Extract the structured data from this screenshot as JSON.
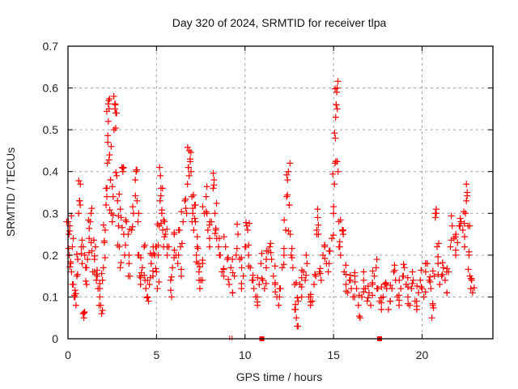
{
  "chart_data": {
    "type": "scatter",
    "title": "Day 320 of 2024, SRMTID for receiver tlpa",
    "xlabel": "GPS time / hours",
    "ylabel": "SRMTID / TECUs",
    "xlim": [
      0,
      24
    ],
    "ylim": [
      0,
      0.7
    ],
    "xticks": [
      0,
      5,
      10,
      15,
      20
    ],
    "xtick_labels": [
      "0",
      "5",
      "10",
      "15",
      "20"
    ],
    "yticks": [
      0,
      0.1,
      0.2,
      0.3,
      0.4,
      0.5,
      0.6,
      0.7
    ],
    "ytick_labels": [
      "0",
      "0.1",
      "0.2",
      "0.3",
      "0.4",
      "0.5",
      "0.6",
      "0.7"
    ],
    "grid": true,
    "marker": "plus",
    "series_color": "#ff0000",
    "series": [
      {
        "name": "SRMTID",
        "points": [
          [
            0.02,
            0.28
          ],
          [
            0.05,
            0.25
          ],
          [
            0.08,
            0.2
          ],
          [
            0.1,
            0.27
          ],
          [
            0.15,
            0.18
          ],
          [
            0.2,
            0.16
          ],
          [
            0.25,
            0.22
          ],
          [
            0.3,
            0.13
          ],
          [
            0.35,
            0.1
          ],
          [
            0.4,
            0.1
          ],
          [
            0.45,
            0.08
          ],
          [
            0.5,
            0.15
          ],
          [
            0.55,
            0.19
          ],
          [
            0.6,
            0.3
          ],
          [
            0.65,
            0.33
          ],
          [
            0.7,
            0.37
          ],
          [
            0.75,
            0.22
          ],
          [
            0.8,
            0.18
          ],
          [
            0.85,
            0.06
          ],
          [
            0.9,
            0.05
          ],
          [
            0.95,
            0.2
          ],
          [
            1.0,
            0.17
          ],
          [
            1.05,
            0.13
          ],
          [
            1.1,
            0.19
          ],
          [
            1.2,
            0.24
          ],
          [
            1.25,
            0.28
          ],
          [
            1.3,
            0.3
          ],
          [
            1.35,
            0.21
          ],
          [
            1.4,
            0.16
          ],
          [
            1.5,
            0.19
          ],
          [
            1.55,
            0.22
          ],
          [
            1.6,
            0.14
          ],
          [
            1.65,
            0.15
          ],
          [
            1.7,
            0.12
          ],
          [
            1.8,
            0.1
          ],
          [
            1.85,
            0.08
          ],
          [
            1.9,
            0.06
          ],
          [
            1.95,
            0.14
          ],
          [
            2.0,
            0.17
          ],
          [
            2.05,
            0.23
          ],
          [
            2.1,
            0.26
          ],
          [
            2.15,
            0.32
          ],
          [
            2.2,
            0.36
          ],
          [
            2.22,
            0.42
          ],
          [
            2.25,
            0.47
          ],
          [
            2.28,
            0.52
          ],
          [
            2.3,
            0.57
          ],
          [
            2.32,
            0.55
          ],
          [
            2.35,
            0.44
          ],
          [
            2.4,
            0.38
          ],
          [
            2.45,
            0.3
          ],
          [
            2.5,
            0.28
          ],
          [
            2.55,
            0.34
          ],
          [
            2.6,
            0.5
          ],
          [
            2.65,
            0.55
          ],
          [
            2.68,
            0.56
          ],
          [
            2.7,
            0.54
          ],
          [
            2.75,
            0.39
          ],
          [
            2.8,
            0.33
          ],
          [
            2.85,
            0.27
          ],
          [
            2.9,
            0.22
          ],
          [
            2.95,
            0.17
          ],
          [
            3.0,
            0.29
          ],
          [
            3.05,
            0.41
          ],
          [
            3.1,
            0.4
          ],
          [
            3.15,
            0.25
          ],
          [
            3.2,
            0.2
          ],
          [
            3.3,
            0.28
          ],
          [
            3.4,
            0.25
          ],
          [
            3.45,
            0.18
          ],
          [
            3.5,
            0.15
          ],
          [
            3.6,
            0.26
          ],
          [
            3.7,
            0.3
          ],
          [
            3.8,
            0.38
          ],
          [
            3.85,
            0.4
          ],
          [
            3.9,
            0.33
          ],
          [
            3.95,
            0.28
          ],
          [
            4.0,
            0.2
          ],
          [
            4.05,
            0.15
          ],
          [
            4.1,
            0.13
          ],
          [
            4.2,
            0.17
          ],
          [
            4.3,
            0.22
          ],
          [
            4.35,
            0.14
          ],
          [
            4.4,
            0.12
          ],
          [
            4.5,
            0.1
          ],
          [
            4.55,
            0.09
          ],
          [
            4.6,
            0.13
          ],
          [
            4.7,
            0.18
          ],
          [
            4.75,
            0.2
          ],
          [
            4.8,
            0.15
          ],
          [
            4.9,
            0.2
          ],
          [
            4.95,
            0.22
          ],
          [
            5.0,
            0.16
          ],
          [
            5.05,
            0.12
          ],
          [
            5.1,
            0.2
          ],
          [
            5.15,
            0.27
          ],
          [
            5.2,
            0.33
          ],
          [
            5.22,
            0.39
          ],
          [
            5.25,
            0.36
          ],
          [
            5.3,
            0.3
          ],
          [
            5.35,
            0.26
          ],
          [
            5.4,
            0.22
          ],
          [
            5.45,
            0.28
          ],
          [
            5.5,
            0.25
          ],
          [
            5.6,
            0.2
          ],
          [
            5.7,
            0.22
          ],
          [
            5.8,
            0.14
          ],
          [
            5.85,
            0.1
          ],
          [
            5.9,
            0.17
          ],
          [
            6.0,
            0.25
          ],
          [
            6.1,
            0.2
          ],
          [
            6.2,
            0.18
          ],
          [
            6.3,
            0.26
          ],
          [
            6.35,
            0.22
          ],
          [
            6.4,
            0.15
          ],
          [
            6.5,
            0.28
          ],
          [
            6.6,
            0.33
          ],
          [
            6.7,
            0.3
          ],
          [
            6.75,
            0.37
          ],
          [
            6.8,
            0.41
          ],
          [
            6.85,
            0.45
          ],
          [
            6.9,
            0.43
          ],
          [
            6.95,
            0.4
          ],
          [
            7.0,
            0.34
          ],
          [
            7.05,
            0.3
          ],
          [
            7.1,
            0.26
          ],
          [
            7.15,
            0.32
          ],
          [
            7.2,
            0.28
          ],
          [
            7.25,
            0.2
          ],
          [
            7.3,
            0.22
          ],
          [
            7.35,
            0.18
          ],
          [
            7.4,
            0.16
          ],
          [
            7.45,
            0.12
          ],
          [
            7.5,
            0.14
          ],
          [
            7.6,
            0.18
          ],
          [
            7.7,
            0.3
          ],
          [
            7.8,
            0.34
          ],
          [
            7.85,
            0.3
          ],
          [
            7.9,
            0.26
          ],
          [
            8.0,
            0.22
          ],
          [
            8.1,
            0.28
          ],
          [
            8.2,
            0.36
          ],
          [
            8.25,
            0.38
          ],
          [
            8.3,
            0.3
          ],
          [
            8.35,
            0.26
          ],
          [
            8.4,
            0.24
          ],
          [
            8.5,
            0.22
          ],
          [
            8.6,
            0.2
          ],
          [
            8.7,
            0.16
          ],
          [
            8.8,
            0.15
          ],
          [
            8.9,
            0.22
          ],
          [
            9.0,
            0.19
          ],
          [
            9.1,
            0.13
          ],
          [
            9.2,
            0.17
          ],
          [
            9.3,
            0.11
          ],
          [
            9.4,
            0.15
          ],
          [
            9.5,
            0.2
          ],
          [
            9.6,
            0.25
          ],
          [
            9.7,
            0.19
          ],
          [
            9.8,
            0.12
          ],
          [
            9.9,
            0.15
          ],
          [
            10.0,
            0.22
          ],
          [
            10.1,
            0.27
          ],
          [
            10.15,
            0.26
          ],
          [
            10.2,
            0.2
          ],
          [
            10.3,
            0.17
          ],
          [
            10.4,
            0.14
          ],
          [
            10.5,
            0.12
          ],
          [
            10.6,
            0.1
          ],
          [
            10.7,
            0.08
          ],
          [
            10.8,
            0.13
          ],
          [
            10.9,
            0.18
          ],
          [
            11.0,
            0.14
          ],
          [
            11.1,
            0.12
          ],
          [
            11.2,
            0.17
          ],
          [
            11.3,
            0.21
          ],
          [
            11.4,
            0.22
          ],
          [
            11.5,
            0.19
          ],
          [
            11.6,
            0.15
          ],
          [
            11.7,
            0.13
          ],
          [
            11.8,
            0.1
          ],
          [
            11.9,
            0.08
          ],
          [
            12.0,
            0.12
          ],
          [
            12.1,
            0.17
          ],
          [
            12.2,
            0.2
          ],
          [
            12.3,
            0.26
          ],
          [
            12.35,
            0.34
          ],
          [
            12.4,
            0.38
          ],
          [
            12.45,
            0.4
          ],
          [
            12.5,
            0.32
          ],
          [
            12.55,
            0.25
          ],
          [
            12.6,
            0.2
          ],
          [
            12.7,
            0.17
          ],
          [
            12.8,
            0.13
          ],
          [
            12.85,
            0.07
          ],
          [
            12.9,
            0.05
          ],
          [
            12.95,
            0.03
          ],
          [
            13.0,
            0.09
          ],
          [
            13.1,
            0.13
          ],
          [
            13.2,
            0.1
          ],
          [
            13.3,
            0.16
          ],
          [
            13.4,
            0.14
          ],
          [
            13.5,
            0.18
          ],
          [
            13.6,
            0.1
          ],
          [
            13.7,
            0.08
          ],
          [
            13.8,
            0.09
          ],
          [
            13.9,
            0.13
          ],
          [
            14.0,
            0.15
          ],
          [
            14.05,
            0.26
          ],
          [
            14.1,
            0.29
          ],
          [
            14.15,
            0.25
          ],
          [
            14.2,
            0.16
          ],
          [
            14.3,
            0.14
          ],
          [
            14.4,
            0.2
          ],
          [
            14.5,
            0.22
          ],
          [
            14.6,
            0.18
          ],
          [
            14.7,
            0.16
          ],
          [
            14.8,
            0.21
          ],
          [
            14.9,
            0.24
          ],
          [
            15.0,
            0.3
          ],
          [
            15.05,
            0.37
          ],
          [
            15.08,
            0.42
          ],
          [
            15.1,
            0.48
          ],
          [
            15.12,
            0.53
          ],
          [
            15.15,
            0.56
          ],
          [
            15.18,
            0.59
          ],
          [
            15.2,
            0.6
          ],
          [
            15.25,
            0.4
          ],
          [
            15.3,
            0.28
          ],
          [
            15.35,
            0.22
          ],
          [
            15.4,
            0.2
          ],
          [
            15.5,
            0.26
          ],
          [
            15.55,
            0.25
          ],
          [
            15.6,
            0.16
          ],
          [
            15.7,
            0.13
          ],
          [
            15.8,
            0.11
          ],
          [
            15.9,
            0.14
          ],
          [
            16.0,
            0.12
          ],
          [
            16.1,
            0.1
          ],
          [
            16.2,
            0.15
          ],
          [
            16.3,
            0.12
          ],
          [
            16.4,
            0.08
          ],
          [
            16.5,
            0.05
          ],
          [
            16.6,
            0.1
          ],
          [
            16.7,
            0.14
          ],
          [
            16.8,
            0.12
          ],
          [
            16.9,
            0.09
          ],
          [
            17.0,
            0.11
          ],
          [
            17.1,
            0.08
          ],
          [
            17.2,
            0.13
          ],
          [
            17.3,
            0.15
          ],
          [
            17.4,
            0.17
          ],
          [
            17.5,
            0.12
          ],
          [
            17.6,
            0.09
          ],
          [
            17.7,
            0.07
          ],
          [
            17.8,
            0.1
          ],
          [
            17.9,
            0.13
          ],
          [
            18.0,
            0.12
          ],
          [
            18.1,
            0.07
          ],
          [
            18.2,
            0.09
          ],
          [
            18.3,
            0.12
          ],
          [
            18.4,
            0.16
          ],
          [
            18.5,
            0.14
          ],
          [
            18.6,
            0.1
          ],
          [
            18.7,
            0.08
          ],
          [
            18.8,
            0.12
          ],
          [
            18.9,
            0.15
          ],
          [
            19.0,
            0.17
          ],
          [
            19.1,
            0.13
          ],
          [
            19.2,
            0.1
          ],
          [
            19.3,
            0.08
          ],
          [
            19.4,
            0.12
          ],
          [
            19.5,
            0.14
          ],
          [
            19.6,
            0.09
          ],
          [
            19.7,
            0.07
          ],
          [
            19.8,
            0.11
          ],
          [
            19.9,
            0.14
          ],
          [
            20.0,
            0.12
          ],
          [
            20.1,
            0.1
          ],
          [
            20.2,
            0.16
          ],
          [
            20.3,
            0.18
          ],
          [
            20.4,
            0.14
          ],
          [
            20.5,
            0.12
          ],
          [
            20.55,
            0.05
          ],
          [
            20.6,
            0.08
          ],
          [
            20.7,
            0.15
          ],
          [
            20.75,
            0.29
          ],
          [
            20.8,
            0.3
          ],
          [
            20.85,
            0.22
          ],
          [
            20.9,
            0.18
          ],
          [
            21.0,
            0.13
          ],
          [
            21.1,
            0.15
          ],
          [
            21.2,
            0.17
          ],
          [
            21.3,
            0.14
          ],
          [
            21.4,
            0.11
          ],
          [
            21.5,
            0.16
          ],
          [
            21.6,
            0.22
          ],
          [
            21.7,
            0.27
          ],
          [
            21.8,
            0.24
          ],
          [
            21.9,
            0.2
          ],
          [
            22.0,
            0.23
          ],
          [
            22.1,
            0.27
          ],
          [
            22.2,
            0.28
          ],
          [
            22.3,
            0.26
          ],
          [
            22.4,
            0.22
          ],
          [
            22.45,
            0.3
          ],
          [
            22.5,
            0.33
          ],
          [
            22.55,
            0.35
          ],
          [
            22.6,
            0.27
          ],
          [
            22.65,
            0.2
          ],
          [
            22.7,
            0.15
          ],
          [
            22.75,
            0.12
          ],
          [
            22.8,
            0.14
          ],
          [
            22.85,
            0.11
          ]
        ]
      }
    ],
    "bottom_markers": [
      {
        "x": 9.2,
        "shape": "double-bar"
      },
      {
        "x": 10.95,
        "shape": "square"
      },
      {
        "x": 17.6,
        "shape": "square"
      }
    ]
  }
}
